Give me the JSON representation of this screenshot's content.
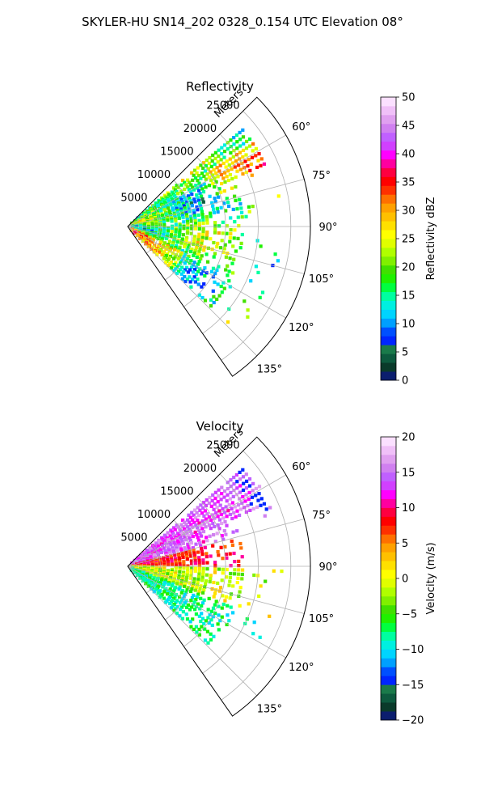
{
  "figure": {
    "title": "SKYLER-HU  SN14_202  0328_0.154 UTC Elevation 08°"
  },
  "chart_data": [
    {
      "type": "heatmap",
      "title": "Reflectivity",
      "radial_label": "Meters",
      "radial_ticks": [
        5000,
        10000,
        15000,
        20000,
        25000
      ],
      "radial_tick_labels": [
        "5000",
        "10000",
        "15000",
        "20000",
        "25000"
      ],
      "radial_max": 28000,
      "azimuth_range": [
        45,
        145
      ],
      "azimuth_ticks": [
        60,
        75,
        90,
        105,
        120,
        135
      ],
      "azimuth_tick_labels": [
        "60°",
        "75°",
        "90°",
        "105°",
        "120°",
        "135°"
      ],
      "grid": true,
      "colorbar": {
        "label": "Reflectivity dBZ",
        "min": 0,
        "max": 50,
        "ticks": [
          0,
          5,
          10,
          15,
          20,
          25,
          30,
          35,
          40,
          45,
          50
        ],
        "tick_labels": [
          "0",
          "5",
          "10",
          "15",
          "20",
          "25",
          "30",
          "35",
          "40",
          "45",
          "50"
        ],
        "colors": [
          "#0b1e6e",
          "#0a3a2a",
          "#0d5a3e",
          "#1a7a4a",
          "#0026ff",
          "#0050ff",
          "#00a0ff",
          "#00d4ff",
          "#00f0e0",
          "#00ffa0",
          "#00ff40",
          "#20f000",
          "#40e000",
          "#80f000",
          "#b0ff00",
          "#e0ff00",
          "#ffff00",
          "#ffe000",
          "#ffc000",
          "#ffa000",
          "#ff7000",
          "#ff3000",
          "#ff0000",
          "#ff0040",
          "#ff00a0",
          "#ff00ff",
          "#d040ff",
          "#c060ff",
          "#d080f0",
          "#e0a0f0",
          "#f0c0f8",
          "#fbe0ff"
        ]
      }
    },
    {
      "type": "heatmap",
      "title": "Velocity",
      "radial_label": "Meters",
      "radial_ticks": [
        5000,
        10000,
        15000,
        20000,
        25000
      ],
      "radial_tick_labels": [
        "5000",
        "10000",
        "15000",
        "20000",
        "25000"
      ],
      "radial_max": 28000,
      "azimuth_range": [
        45,
        145
      ],
      "azimuth_ticks": [
        60,
        75,
        90,
        105,
        120,
        135
      ],
      "azimuth_tick_labels": [
        "60°",
        "75°",
        "90°",
        "105°",
        "120°",
        "135°"
      ],
      "grid": true,
      "colorbar": {
        "label": "Velocity (m/s)",
        "min": -20,
        "max": 20,
        "ticks": [
          -20,
          -15,
          -10,
          -5,
          0,
          5,
          10,
          15,
          20
        ],
        "tick_labels": [
          "−20",
          "−15",
          "−10",
          "−5",
          "0",
          "5",
          "10",
          "15",
          "20"
        ],
        "colors": [
          "#0b1e6e",
          "#0a3a2a",
          "#0d5a3e",
          "#1a7a4a",
          "#0026ff",
          "#0050ff",
          "#00a0ff",
          "#00d4ff",
          "#00f0e0",
          "#00ffa0",
          "#00ff40",
          "#20f000",
          "#40e000",
          "#80f000",
          "#b0ff00",
          "#e0ff00",
          "#ffff00",
          "#ffe000",
          "#ffc000",
          "#ffa000",
          "#ff7000",
          "#ff3000",
          "#ff0000",
          "#ff0040",
          "#ff00a0",
          "#ff00ff",
          "#d040ff",
          "#c060ff",
          "#d080f0",
          "#e0a0f0",
          "#f0c0f8",
          "#fbe0ff"
        ]
      }
    }
  ]
}
